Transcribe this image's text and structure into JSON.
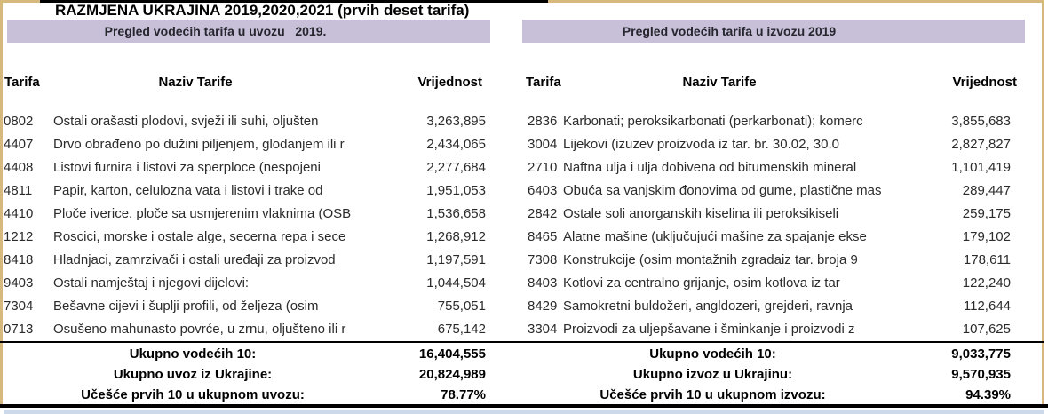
{
  "title": "RAZMJENA UKRAJINA 2019,2020,2021 (prvih deset tarifa)",
  "columns": {
    "tarifa": "Tarifa",
    "naziv": "Naziv Tarife",
    "vrijednost": "Vrijednost"
  },
  "colors": {
    "band_purple": "#c8bfd8",
    "border_tan": "#d8b97d",
    "bottom_strip_blue": "#cdd9e8",
    "rule_black": "#000000"
  },
  "tables": [
    {
      "id": "uvoz",
      "band_title": "Pregled vodećih tarifa u uvozu   2019.",
      "rows": [
        {
          "tarifa": "0802",
          "naziv": "Ostali orašasti plodovi, svježi ili suhi, oljušten",
          "vrijednost": "3,263,895"
        },
        {
          "tarifa": "4407",
          "naziv": "Drvo obrađeno po dužini piljenjem, glodanjem ili r",
          "vrijednost": "2,434,065"
        },
        {
          "tarifa": "4408",
          "naziv": "Listovi furnira i listovi za sperploce (nespojeni",
          "vrijednost": "2,277,684"
        },
        {
          "tarifa": "4811",
          "naziv": "Papir, karton, celulozna vata i listovi i trake od",
          "vrijednost": "1,951,053"
        },
        {
          "tarifa": "4410",
          "naziv": "Ploče iverice, ploče sa usmjerenim vlaknima (OSB",
          "vrijednost": "1,536,658"
        },
        {
          "tarifa": "1212",
          "naziv": "Roscici, morske i ostale alge, secerna repa i sece",
          "vrijednost": "1,268,912"
        },
        {
          "tarifa": "8418",
          "naziv": "Hladnjaci, zamrzivači i ostali uređaji za proizvod",
          "vrijednost": "1,197,591"
        },
        {
          "tarifa": "9403",
          "naziv": "Ostali namještaj i njegovi dijelovi:",
          "vrijednost": "1,044,504"
        },
        {
          "tarifa": "7304",
          "naziv": "Bešavne cijevi i šuplji profili, od željeza (osim",
          "vrijednost": "755,051"
        },
        {
          "tarifa": "0713",
          "naziv": "Osušeno mahunasto povrće, u zrnu, oljušteno ili r",
          "vrijednost": "675,142"
        }
      ],
      "summary": [
        {
          "label": "Ukupno vodećih 10:",
          "value": "16,404,555"
        },
        {
          "label": "Ukupno uvoz iz Ukrajine:",
          "value": "20,824,989"
        },
        {
          "label": "Učešće prvih 10 u ukupnom uvozu:",
          "value": "78.77%"
        }
      ]
    },
    {
      "id": "izvoz",
      "band_title": "Pregled vodećih tarifa u izvozu 2019",
      "rows": [
        {
          "tarifa": "2836",
          "naziv": "Karbonati; peroksikarbonati (perkarbonati); komerc",
          "vrijednost": "3,855,683"
        },
        {
          "tarifa": "3004",
          "naziv": "Lijekovi (izuzev proizvoda iz tar. br. 30.02, 30.0",
          "vrijednost": "2,827,827"
        },
        {
          "tarifa": "2710",
          "naziv": "Naftna ulja i ulja dobivena od bitumenskih mineral",
          "vrijednost": "1,101,419"
        },
        {
          "tarifa": "6403",
          "naziv": "Obuća sa vanjskim đonovima od gume, plastične mas",
          "vrijednost": "289,447"
        },
        {
          "tarifa": "2842",
          "naziv": "Ostale soli anorganskih kiselina ili peroksikiseli",
          "vrijednost": "259,175"
        },
        {
          "tarifa": "8465",
          "naziv": "Alatne mašine (uključujući mašine za spajanje ekse",
          "vrijednost": "179,102"
        },
        {
          "tarifa": "7308",
          "naziv": "Konstrukcije (osim montažnih zgradaiz tar. broja 9",
          "vrijednost": "178,611"
        },
        {
          "tarifa": "8403",
          "naziv": "Kotlovi za centralno grijanje, osim kotlova iz tar",
          "vrijednost": "122,240"
        },
        {
          "tarifa": "8429",
          "naziv": "Samokretni buldožeri, angldozeri, grejderi, ravnja",
          "vrijednost": "112,644"
        },
        {
          "tarifa": "3304",
          "naziv": "Proizvodi za uljepšavane i šminkanje i proizvodi z",
          "vrijednost": "107,625"
        }
      ],
      "summary": [
        {
          "label": "Ukupno vodećih 10:",
          "value": "9,033,775"
        },
        {
          "label": "Ukupno izvoz u Ukrajinu:",
          "value": "9,570,935"
        },
        {
          "label": "Učešće prvih 10 u ukupnom izvozu:",
          "value": "94.39%"
        }
      ]
    }
  ]
}
